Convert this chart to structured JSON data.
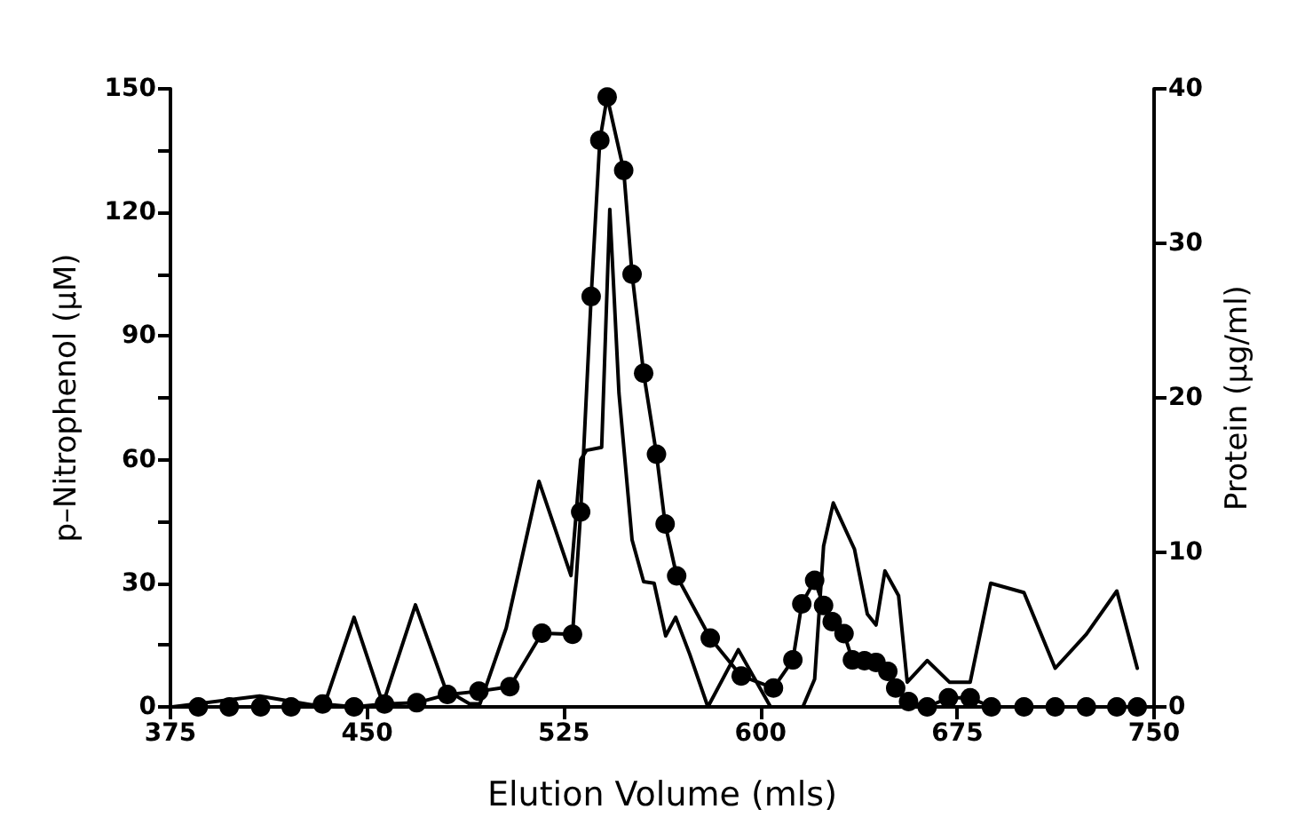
{
  "chart_data": {
    "type": "line",
    "xlabel": "Elution Volume (mls)",
    "ylabel": "p–Nitrophenol (μM)",
    "y2label": "Protein (μg/ml)",
    "xlim": [
      375,
      750
    ],
    "xticks": [
      375,
      450,
      525,
      600,
      675,
      750
    ],
    "ylim": [
      0,
      150
    ],
    "yticks": [
      0,
      {
        "value": 15,
        "label": null
      },
      30,
      {
        "value": 45,
        "label": null
      },
      60,
      {
        "value": 75,
        "label": null
      },
      90,
      {
        "value": 105,
        "label": null
      },
      120,
      {
        "value": 135,
        "label": null
      },
      150
    ],
    "y2lim": [
      0,
      40
    ],
    "y2ticks": [
      0,
      10,
      20,
      30,
      40
    ],
    "grid": false,
    "line_style": "solid",
    "series": [
      {
        "color": "#000000",
        "marker": "circle",
        "x": [
          385.6,
          397.4,
          409.4,
          421,
          433,
          445,
          456.6,
          468.9,
          480.6,
          492.6,
          504.4,
          516.6,
          528.3,
          531.4,
          535.4,
          538.7,
          541.5,
          547.8,
          551,
          555.4,
          560.3,
          563.6,
          568,
          580.8,
          592.6,
          604.9,
          612.3,
          615.7,
          620.6,
          624,
          627.3,
          631.8,
          635,
          639.6,
          644,
          648.5,
          651.5,
          656.4,
          663.5,
          671.6,
          679.9,
          688,
          700.4,
          712.3,
          724.2,
          735.8,
          743.6
        ],
        "values": [
          0,
          0,
          0,
          0,
          0.7,
          0,
          0.7,
          1,
          3,
          3.8,
          4.9,
          17.9,
          17.6,
          47.3,
          99.6,
          137.5,
          148,
          130.2,
          105,
          81,
          61.3,
          44.4,
          31.8,
          16.7,
          7.5,
          4.6,
          11.4,
          25,
          30.7,
          24.6,
          20.7,
          17.8,
          11.4,
          11.2,
          10.8,
          8.6,
          4.6,
          1.3,
          0,
          2.2,
          2.2,
          0,
          0,
          0,
          0,
          0,
          0
        ]
      },
      {
        "color": "#000000",
        "marker": "none",
        "axis": "y2",
        "x": [
          375.7,
          409,
          433.4,
          445,
          456,
          468.4,
          480,
          489,
          493,
          503,
          515.5,
          527.7,
          531.4,
          533.6,
          539.4,
          542.5,
          546,
          551,
          555.4,
          559.4,
          563.8,
          567.6,
          573,
          579.9,
          591.5,
          603.8,
          616.1,
          620.6,
          624,
          627.7,
          635.8,
          640.7,
          644,
          647.4,
          652.6,
          655.9,
          663.5,
          672,
          679.9,
          687.7,
          700.4,
          712.3,
          724.2,
          735.8,
          743.6
        ],
        "values": [
          0,
          0.7,
          0,
          5.8,
          0.2,
          6.6,
          1.1,
          0.2,
          0.2,
          5.1,
          14.6,
          8.5,
          16,
          16.6,
          16.8,
          32.2,
          20.3,
          10.8,
          8.1,
          8,
          4.6,
          5.8,
          3.4,
          0,
          3.7,
          0,
          0,
          1.8,
          10.4,
          13.2,
          10.2,
          6,
          5.3,
          8.8,
          7.2,
          1.6,
          3,
          1.6,
          1.6,
          8,
          7.4,
          2.5,
          4.7,
          7.5,
          2.5
        ]
      }
    ]
  }
}
